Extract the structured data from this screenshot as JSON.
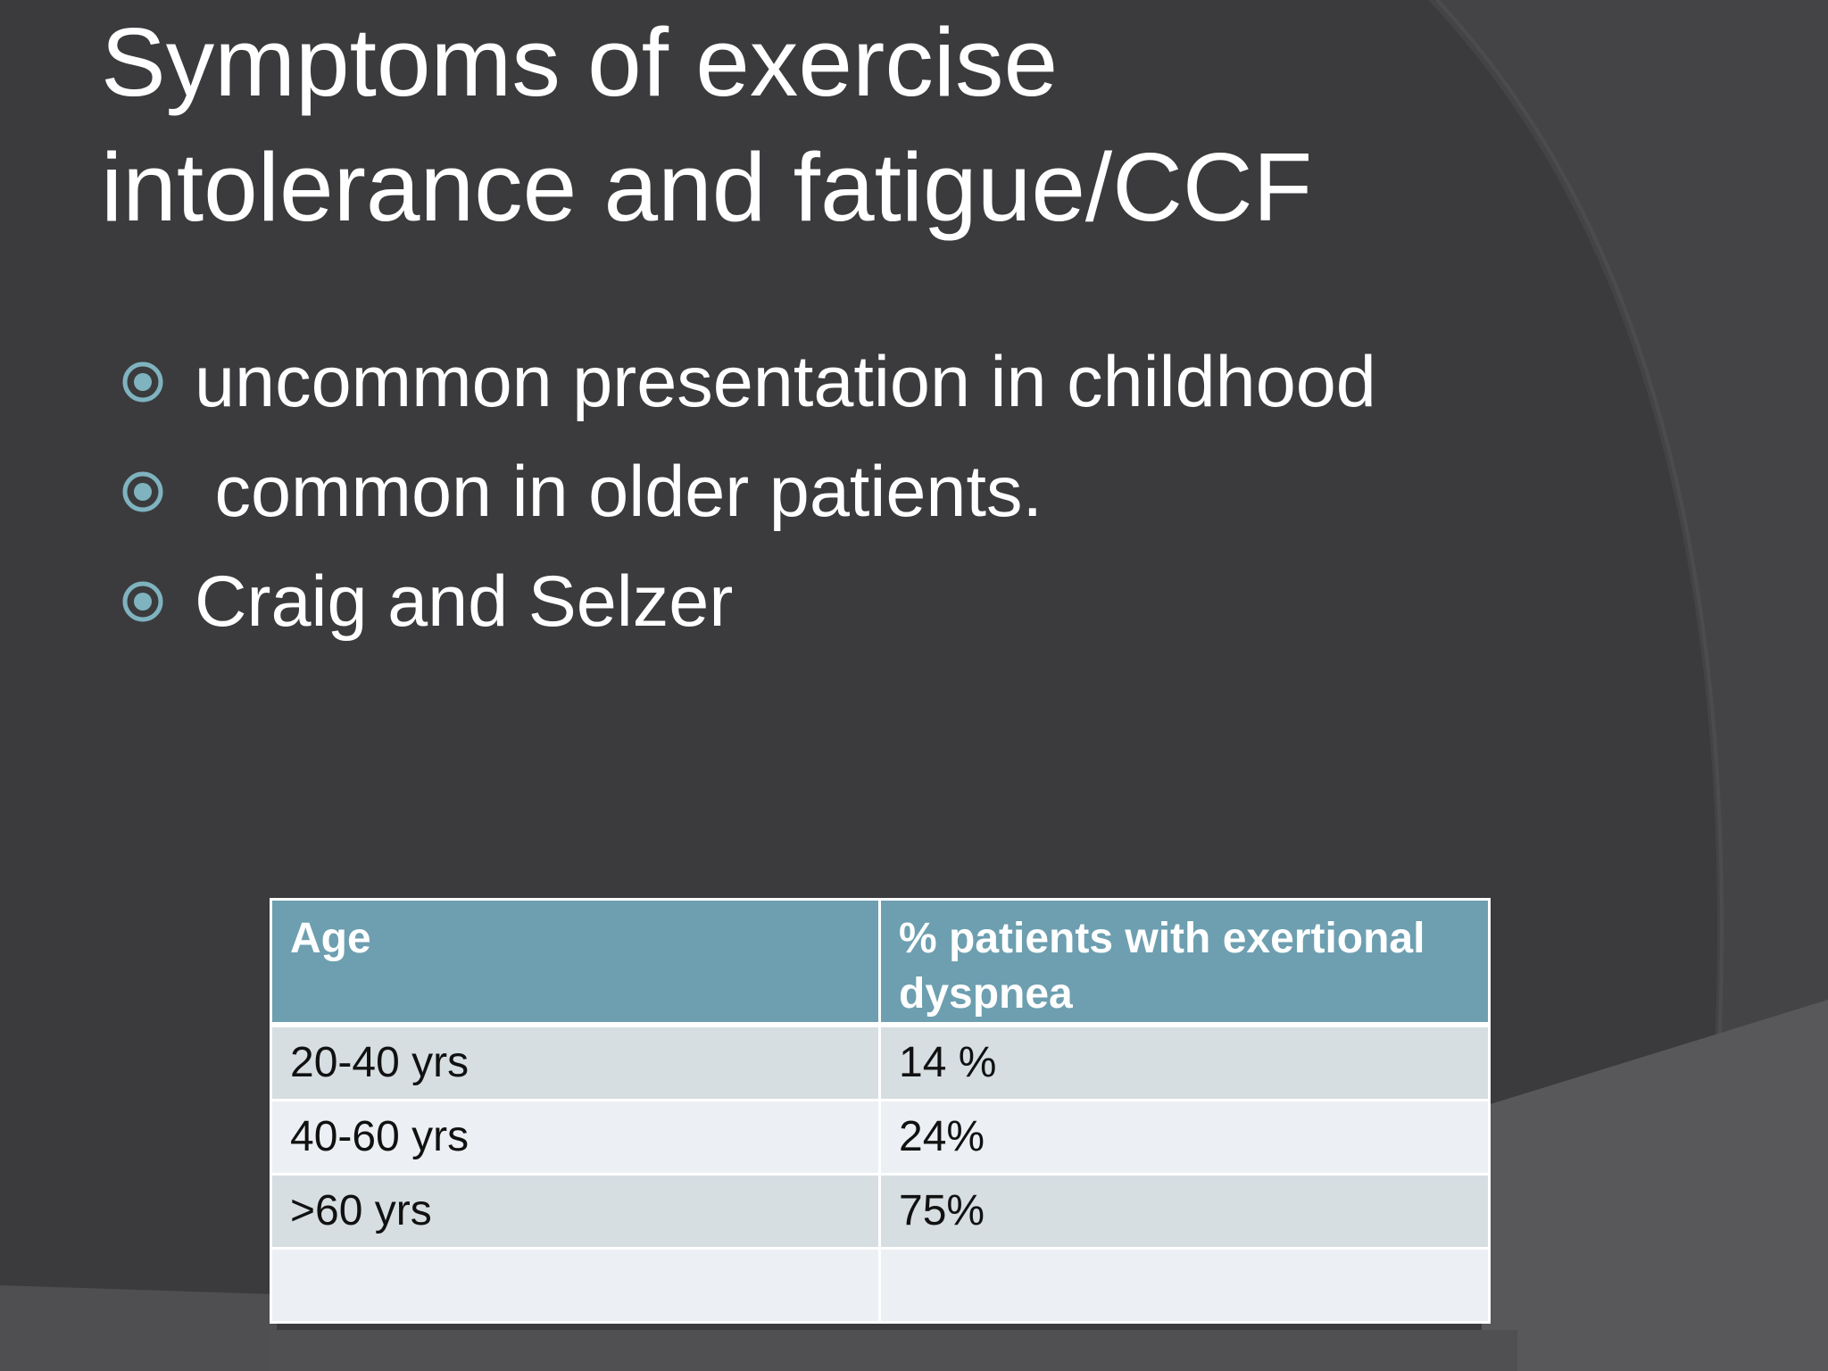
{
  "slide": {
    "title_lines": [
      "Symptoms of exercise",
      "intolerance and fatigue/CCF"
    ],
    "bullets": [
      {
        "text": "uncommon presentation in childhood",
        "icon": "circle-bullet-icon"
      },
      {
        "text": " common in older patients.",
        "icon": "circle-bullet-icon"
      },
      {
        "text": "Craig and Selzer",
        "icon": "circle-bullet-icon"
      }
    ],
    "table": {
      "headers": [
        "Age",
        "% patients with exertional dyspnea"
      ],
      "rows": [
        [
          "20-40 yrs",
          "14 %"
        ],
        [
          "40-60 yrs",
          "24%"
        ],
        [
          ">60 yrs",
          "75%"
        ],
        [
          "",
          ""
        ]
      ]
    }
  },
  "colors": {
    "background": "#3b3b3d",
    "accent": "#6d9fb0",
    "bullet": "#7fb3c0",
    "row_odd": "#d6dee2",
    "row_even": "#eceff3"
  }
}
